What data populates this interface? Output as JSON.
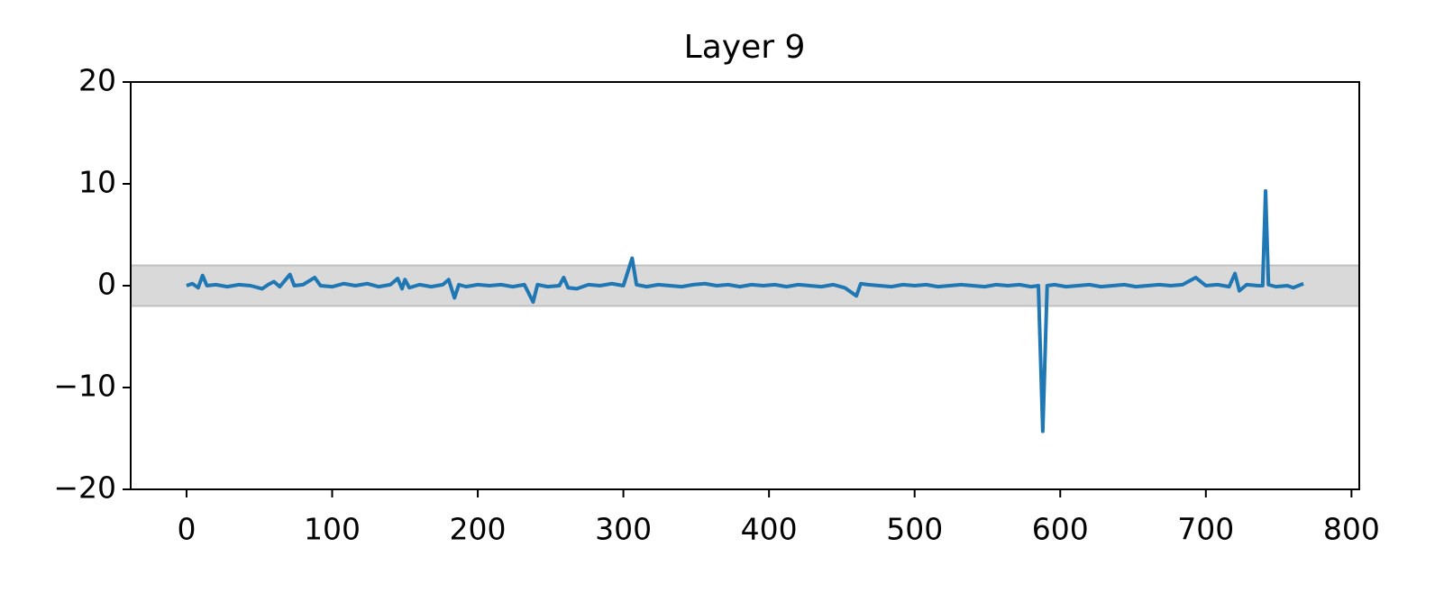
{
  "chart_data": {
    "type": "line",
    "title": "Layer 9",
    "x": [
      0,
      4,
      8,
      11,
      14,
      20,
      28,
      36,
      44,
      52,
      56,
      60,
      64,
      71,
      74,
      80,
      88,
      92,
      100,
      108,
      116,
      124,
      132,
      140,
      145,
      148,
      150,
      153,
      160,
      168,
      176,
      180,
      184,
      187,
      192,
      200,
      208,
      216,
      224,
      232,
      238,
      241,
      248,
      256,
      259,
      262,
      268,
      276,
      284,
      292,
      300,
      306,
      309,
      316,
      324,
      332,
      340,
      348,
      356,
      364,
      372,
      380,
      388,
      396,
      404,
      412,
      420,
      428,
      436,
      444,
      452,
      460,
      463,
      468,
      476,
      484,
      492,
      500,
      508,
      516,
      524,
      532,
      540,
      548,
      556,
      564,
      572,
      580,
      585,
      588,
      591,
      596,
      604,
      612,
      620,
      628,
      636,
      644,
      652,
      660,
      668,
      676,
      684,
      693,
      700,
      708,
      716,
      720,
      723,
      728,
      736,
      739,
      741,
      743,
      748,
      756,
      760,
      767
    ],
    "series": [
      {
        "name": "Layer 9",
        "color": "#1f77b4",
        "values": [
          0,
          0.2,
          -0.2,
          1.0,
          0,
          0.1,
          -0.1,
          0.1,
          0,
          -0.3,
          0.1,
          0.4,
          -0.1,
          1.1,
          0,
          0.1,
          0.8,
          0,
          -0.1,
          0.2,
          0,
          0.2,
          -0.1,
          0.1,
          0.7,
          -0.3,
          0.6,
          -0.2,
          0.1,
          -0.1,
          0.1,
          0.6,
          -1.2,
          0.1,
          -0.1,
          0.1,
          0,
          0.1,
          -0.1,
          0.1,
          -1.6,
          0.1,
          -0.1,
          0,
          0.8,
          -0.2,
          -0.3,
          0.1,
          0,
          0.2,
          0,
          2.7,
          0.1,
          -0.1,
          0.1,
          0,
          -0.1,
          0.1,
          0.2,
          0,
          0.1,
          -0.1,
          0.1,
          0,
          0.1,
          -0.1,
          0.1,
          0,
          -0.1,
          0.1,
          -0.2,
          -1.0,
          0.2,
          0.1,
          0,
          -0.1,
          0.1,
          0,
          0.1,
          -0.1,
          0,
          0.1,
          0,
          -0.1,
          0.1,
          0,
          0.1,
          -0.1,
          0,
          -14.3,
          0,
          0.1,
          -0.1,
          0,
          0.1,
          -0.1,
          0,
          0.1,
          -0.1,
          0,
          0.1,
          0,
          0.1,
          0.8,
          0,
          0.1,
          -0.1,
          1.2,
          -0.5,
          0.1,
          0,
          0,
          9.3,
          0.1,
          -0.1,
          0,
          -0.2,
          0.2
        ]
      }
    ],
    "shaded_band": [
      -2,
      2
    ],
    "xlim": [
      -38.35,
      805.35
    ],
    "xticks": [
      0,
      100,
      200,
      300,
      400,
      500,
      600,
      700,
      800
    ],
    "ylim": [
      -20,
      20
    ],
    "yticks": [
      {
        "value": -20,
        "label": "−20"
      },
      {
        "value": -10,
        "label": "−10"
      },
      0,
      10,
      20
    ]
  }
}
